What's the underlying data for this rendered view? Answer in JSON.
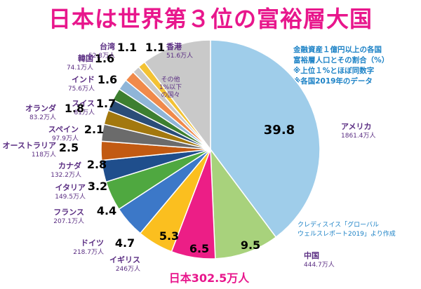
{
  "title": "日本は世界第３位の富裕層大国",
  "note_lines": [
    "金融資産１億円以上の各国",
    "富裕層人口とその割合（%）",
    "※上位１%とほぼ同数字",
    "※各国2019年のデータ"
  ],
  "source_lines": [
    "クレディスイス「グローバル",
    "ウェルスレポート2019」より作成"
  ],
  "colors": {
    "title": "#e8168c",
    "note": "#1c82c6",
    "country_label": "#5a2d82",
    "japan_label": "#e8168c"
  },
  "chart_data": {
    "type": "pie",
    "start": "12 o'clock, clockwise",
    "slices": [
      {
        "country": "アメリカ",
        "pct": 39.8,
        "people": "1861.4万人",
        "color": "#9fcdea"
      },
      {
        "country": "中国",
        "pct": 9.5,
        "people": "444.7万人",
        "color": "#a8d27c"
      },
      {
        "country": "日本",
        "pct": 6.5,
        "people": "302.5万人",
        "color": "#ec1e86",
        "label_combined": "日本302.5万人"
      },
      {
        "country": "イギリス",
        "pct": 5.3,
        "people": "246万人",
        "color": "#fbbf1f"
      },
      {
        "country": "ドイツ",
        "pct": 4.7,
        "people": "218.7万人",
        "color": "#3c78c8"
      },
      {
        "country": "フランス",
        "pct": 4.4,
        "people": "207.1万人",
        "color": "#4fa840"
      },
      {
        "country": "イタリア",
        "pct": 3.2,
        "people": "149.5万人",
        "color": "#1f4e8c"
      },
      {
        "country": "カナダ",
        "pct": 2.8,
        "people": "132.2万人",
        "color": "#c25a12"
      },
      {
        "country": "オーストラリア",
        "pct": 2.5,
        "people": "118万人",
        "color": "#6b6b6b"
      },
      {
        "country": "スペイン",
        "pct": 2.1,
        "people": "97.9万人",
        "color": "#a3780e"
      },
      {
        "country": "スイス",
        "pct": 1.7,
        "people": "81万人",
        "color": "#2a4d78"
      },
      {
        "country": "オランダ",
        "pct": 1.8,
        "people": "83.2万人",
        "color": "#3d7f30"
      },
      {
        "country": "インド",
        "pct": 1.6,
        "people": "75.6万人",
        "color": "#8fb5d8"
      },
      {
        "country": "韓国",
        "pct": 1.6,
        "people": "74.1万人",
        "color": "#f08a4b"
      },
      {
        "country": "台湾",
        "pct": 1.1,
        "people": "52.8万人",
        "color": "#c8c8c8"
      },
      {
        "country": "香港",
        "pct": 1.1,
        "people": "51.6万人",
        "color": "#f3c234"
      },
      {
        "country": "その他",
        "pct": 10.3,
        "people": "",
        "color": "#c9c9c9",
        "label_lines": [
          "その他",
          "1%以下",
          "の国々"
        ]
      }
    ]
  }
}
